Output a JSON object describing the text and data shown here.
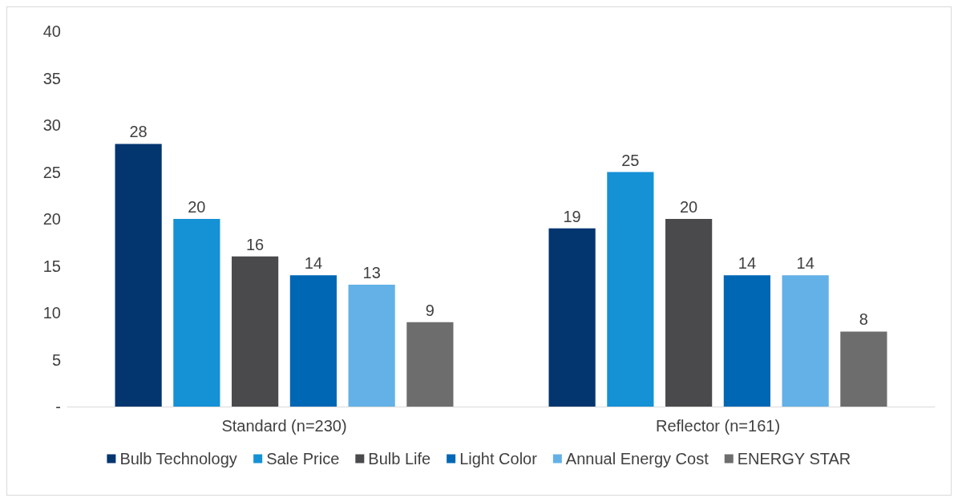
{
  "chart_data": {
    "type": "bar",
    "categories": [
      "Standard (n=230)",
      "Reflector (n=161)"
    ],
    "series": [
      {
        "name": "Bulb Technology",
        "color": "#03356f",
        "values": [
          28,
          19
        ]
      },
      {
        "name": "Sale Price",
        "color": "#1591d6",
        "values": [
          20,
          25
        ]
      },
      {
        "name": "Bulb Life",
        "color": "#4a4a4c",
        "values": [
          16,
          20
        ]
      },
      {
        "name": "Light Color",
        "color": "#0067b5",
        "values": [
          14,
          14
        ]
      },
      {
        "name": "Annual Energy Cost",
        "color": "#63b1e7",
        "values": [
          13,
          14
        ]
      },
      {
        "name": "ENERGY STAR",
        "color": "#6d6d6d",
        "values": [
          9,
          8
        ]
      }
    ],
    "ylim": [
      0,
      40
    ],
    "yticks": [
      {
        "value": 0,
        "label": "-"
      },
      5,
      10,
      15,
      20,
      25,
      30,
      35,
      40
    ],
    "data_labels": true,
    "grid": false,
    "legend": "bottom"
  }
}
